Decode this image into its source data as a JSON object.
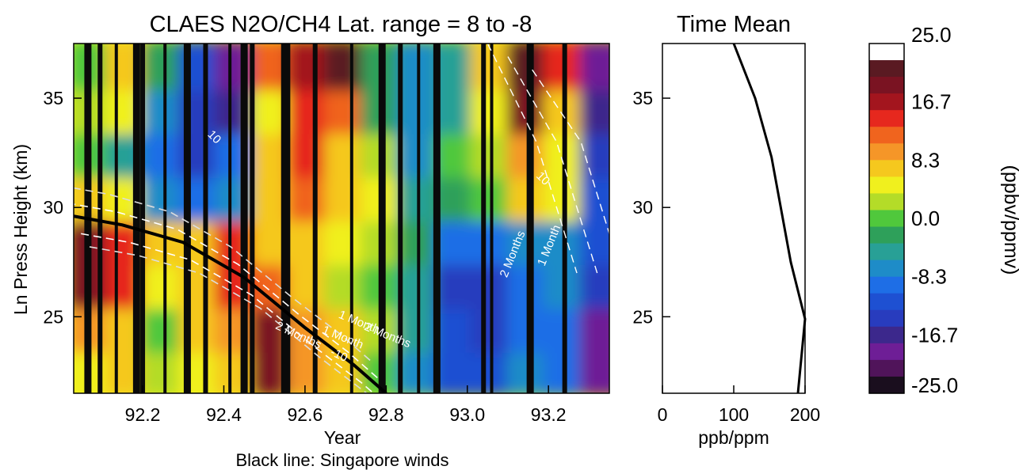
{
  "chart_data": [
    {
      "type": "heatmap",
      "title": "CLAES N2O/CH4 Lat. range = 8 to -8",
      "xlabel": "Year",
      "ylabel": "Ln Press Height (km)",
      "caption": "Black line: Singapore winds",
      "xlim": [
        92.03,
        93.35
      ],
      "ylim": [
        21.5,
        37.5
      ],
      "xticks": [
        {
          "value": 92.2,
          "label": "92.2"
        },
        {
          "value": 92.4,
          "label": "92.4"
        },
        {
          "value": 92.6,
          "label": "92.6"
        },
        {
          "value": 92.8,
          "label": "92.8"
        },
        {
          "value": 93.0,
          "label": "93.0"
        },
        {
          "value": 93.2,
          "label": "93.2"
        }
      ],
      "yticks": [
        {
          "value": 25,
          "label": "25"
        },
        {
          "value": 30,
          "label": "30"
        },
        {
          "value": 35,
          "label": "35"
        }
      ],
      "data_gaps_years": [
        92.065,
        92.095,
        92.135,
        92.185,
        92.2,
        92.255,
        92.31,
        92.355,
        92.415,
        92.45,
        92.47,
        92.545,
        92.555,
        92.625,
        92.715,
        92.79,
        92.835,
        92.88,
        92.925,
        93.04,
        93.06,
        93.155,
        93.24
      ],
      "anomaly_cells": {
        "note": "approximate anomaly values (ppbv/ppmv) on a coarse grid",
        "x": [
          92.07,
          92.16,
          92.25,
          92.34,
          92.43,
          92.52,
          92.61,
          92.7,
          92.79,
          92.88,
          92.97,
          93.06,
          93.15,
          93.24,
          93.33
        ],
        "y": [
          22.5,
          24.5,
          26.5,
          28.5,
          30.5,
          32.5,
          34.5,
          36.5
        ],
        "z": [
          [
            4,
            6,
            2,
            4,
            6,
            18,
            10,
            6,
            0,
            -6,
            -12,
            -12,
            -8,
            -10,
            -20
          ],
          [
            10,
            8,
            0,
            6,
            10,
            18,
            10,
            6,
            2,
            -4,
            -12,
            -14,
            -10,
            -10,
            -18
          ],
          [
            18,
            14,
            4,
            8,
            14,
            12,
            6,
            2,
            0,
            -4,
            -14,
            -14,
            -10,
            -8,
            -14
          ],
          [
            18,
            14,
            6,
            8,
            14,
            8,
            8,
            4,
            2,
            -2,
            -10,
            -10,
            -6,
            -6,
            -12
          ],
          [
            6,
            4,
            -6,
            -10,
            -6,
            6,
            12,
            6,
            4,
            -4,
            -2,
            0,
            6,
            4,
            -12
          ],
          [
            0,
            -4,
            -10,
            -14,
            -10,
            6,
            14,
            8,
            2,
            -6,
            0,
            2,
            10,
            4,
            -14
          ],
          [
            2,
            4,
            -6,
            -14,
            -16,
            4,
            14,
            12,
            -2,
            -6,
            -4,
            4,
            18,
            8,
            -16
          ],
          [
            0,
            6,
            -2,
            -12,
            -18,
            12,
            16,
            22,
            -2,
            -6,
            -4,
            6,
            22,
            14,
            -20
          ]
        ]
      },
      "overlay_labels": [
        {
          "text": "2 Months",
          "x": 92.8,
          "y": 24.0,
          "rotate": 22
        },
        {
          "text": "1 Month",
          "x": 92.73,
          "y": 24.6,
          "rotate": 22
        },
        {
          "text": "1 Month",
          "x": 92.69,
          "y": 23.9,
          "rotate": 22
        },
        {
          "text": "2 Months",
          "x": 92.58,
          "y": 24.0,
          "rotate": 25
        },
        {
          "text": "-10",
          "x": 92.68,
          "y": 23.1,
          "rotate": 25
        },
        {
          "text": "2 Months",
          "x": 93.12,
          "y": 27.8,
          "rotate": -68
        },
        {
          "text": "1 Month",
          "x": 93.21,
          "y": 28.2,
          "rotate": -68
        },
        {
          "text": "10",
          "x": 92.37,
          "y": 33.1,
          "rotate": 45
        },
        {
          "text": "10",
          "x": 93.18,
          "y": 31.2,
          "rotate": 45
        }
      ],
      "singapore_wind_shear_line": [
        {
          "x": 92.03,
          "y": 29.6
        },
        {
          "x": 92.15,
          "y": 29.2
        },
        {
          "x": 92.3,
          "y": 28.4
        },
        {
          "x": 92.45,
          "y": 26.8
        },
        {
          "x": 92.6,
          "y": 24.5
        },
        {
          "x": 92.72,
          "y": 22.8
        },
        {
          "x": 92.8,
          "y": 21.5
        }
      ]
    },
    {
      "type": "line",
      "title": "Time Mean",
      "xlabel": "ppb/ppm",
      "ylabel": "",
      "xlim": [
        0,
        200
      ],
      "ylim": [
        21.5,
        37.5
      ],
      "xticks": [
        {
          "value": 0,
          "label": "0"
        },
        {
          "value": 100,
          "label": "100"
        },
        {
          "value": 200,
          "label": "200"
        }
      ],
      "yticks": [
        {
          "value": 25,
          "label": "25"
        },
        {
          "value": 30,
          "label": "30"
        },
        {
          "value": 35,
          "label": "35"
        }
      ],
      "series": [
        {
          "x": [
            100,
            130,
            153,
            180,
            200,
            190
          ],
          "y": [
            37.5,
            35.0,
            32.3,
            27.5,
            24.9,
            21.5
          ]
        }
      ]
    }
  ],
  "colorbar": {
    "label": "(ppbv/ppmv)",
    "ticks": [
      {
        "value": 25.0,
        "label": "25.0"
      },
      {
        "value": 16.7,
        "label": "16.7"
      },
      {
        "value": 8.3,
        "label": "8.3"
      },
      {
        "value": 0.0,
        "label": "0.0"
      },
      {
        "value": -8.3,
        "label": "-8.3"
      },
      {
        "value": -16.7,
        "label": "-16.7"
      },
      {
        "value": -25.0,
        "label": "-25.0"
      }
    ],
    "colors": [
      "#ffffff",
      "#5a1a22",
      "#7a1322",
      "#a3151e",
      "#e6281e",
      "#f0641e",
      "#f59628",
      "#f5c81e",
      "#f0f01e",
      "#b4dc28",
      "#50c83c",
      "#2ea05a",
      "#28a096",
      "#1e8cc8",
      "#1e6ee6",
      "#1e50d2",
      "#283cbe",
      "#3c288c",
      "#6e1e96",
      "#50145a",
      "#1a0e1e"
    ]
  }
}
